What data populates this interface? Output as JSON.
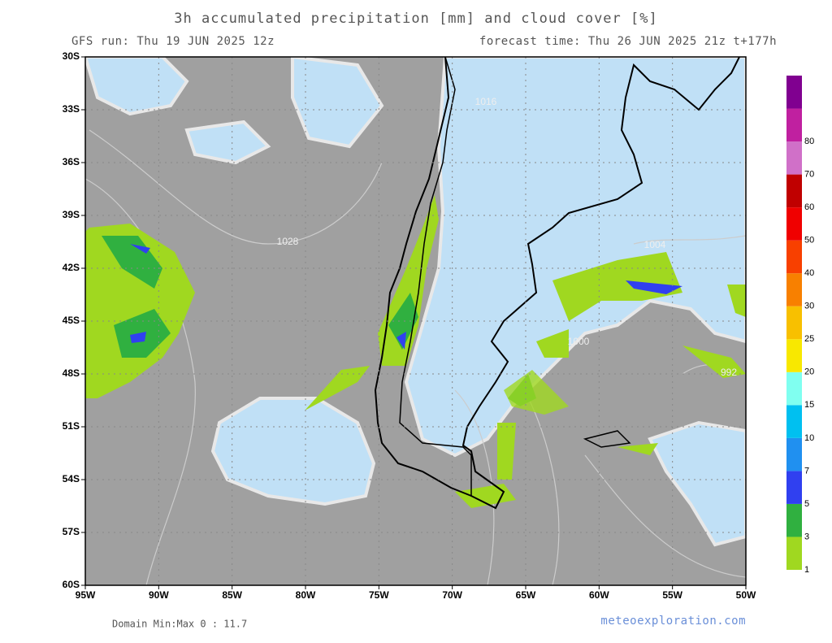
{
  "map_data": {
    "title": "3h accumulated precipitation [mm] and cloud cover [%]",
    "run": "GFS run: Thu 19 JUN 2025 12z",
    "forecast": "forecast time: Thu 26 JUN 2025 21z  t+177h",
    "lon_ticks": [
      {
        "value": -95,
        "label": "95W"
      },
      {
        "value": -90,
        "label": "90W"
      },
      {
        "value": -85,
        "label": "85W"
      },
      {
        "value": -80,
        "label": "80W"
      },
      {
        "value": -75,
        "label": "75W"
      },
      {
        "value": -70,
        "label": "70W"
      },
      {
        "value": -65,
        "label": "65W"
      },
      {
        "value": -60,
        "label": "60W"
      },
      {
        "value": -55,
        "label": "55W"
      },
      {
        "value": -50,
        "label": "50W"
      }
    ],
    "lat_ticks": [
      {
        "value": -30,
        "label": "30S"
      },
      {
        "value": -33,
        "label": "33S"
      },
      {
        "value": -36,
        "label": "36S"
      },
      {
        "value": -39,
        "label": "39S"
      },
      {
        "value": -42,
        "label": "42S"
      },
      {
        "value": -45,
        "label": "45S"
      },
      {
        "value": -48,
        "label": "48S"
      },
      {
        "value": -51,
        "label": "51S"
      },
      {
        "value": -54,
        "label": "54S"
      },
      {
        "value": -57,
        "label": "57S"
      },
      {
        "value": -60,
        "label": "60S"
      }
    ],
    "lonlim": [
      -95,
      -50
    ],
    "latlim": [
      -30,
      -60
    ],
    "contour_labels": [
      "1028",
      "1004",
      "1000",
      "992",
      "1016"
    ],
    "colorbar": {
      "levels": [
        1,
        3,
        5,
        7,
        10,
        15,
        20,
        25,
        30,
        40,
        50,
        60,
        70,
        80
      ],
      "colors": [
        "#a0d820",
        "#30b040",
        "#3040f0",
        "#2090f0",
        "#00c0f0",
        "#80fff0",
        "#f8e800",
        "#f8c000",
        "#f88000",
        "#f84000",
        "#f00000",
        "#c00000",
        "#d070c8",
        "#c020a0",
        "#800090"
      ]
    },
    "minmax": "Domain Min:Max 0 : 11.7",
    "site": "meteoexploration.com"
  }
}
